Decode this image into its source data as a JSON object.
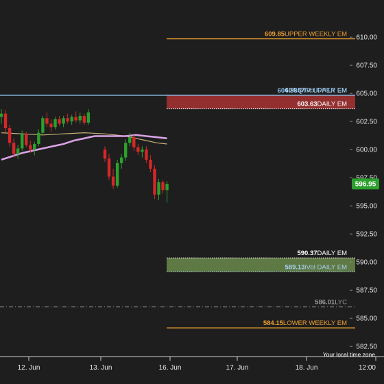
{
  "chart_data": {
    "type": "candlestick",
    "y_ticks": [
      "610.00",
      "607.50",
      "605.00",
      "602.50",
      "600.00",
      "597.50",
      "595.00",
      "592.50",
      "590.00",
      "587.50",
      "585.00",
      "582.50"
    ],
    "x_ticks": [
      "12. Jun",
      "13. Jun",
      "16. Jun",
      "17. Jun",
      "18. Jun",
      "12:00"
    ],
    "ylim": [
      581.6,
      613.3
    ],
    "current_price": {
      "value": 596.95,
      "label": "596.95",
      "color": "#2ca02c"
    },
    "footer_note": "Your local time zone",
    "levels": [
      {
        "key": "upper_weekly",
        "value": 609.85,
        "value_label": "609.85",
        "name": "UPPER WEEKLY EM",
        "color": "#f0a030",
        "style": "solid",
        "x_start_frac": 0.46
      },
      {
        "key": "qtr_upper",
        "value": 604.83,
        "value_label": "604.83",
        "name": "QTR UPPER EM",
        "color": "#8ec7f0",
        "style": "solid",
        "x_start_frac": 0.0
      },
      {
        "key": "ivol_upper",
        "value": 604.87,
        "value_label": "604.87",
        "name": "iVol DAILY EM",
        "color": "#a8d0f0",
        "style": "none",
        "x_start_frac": 0.46
      },
      {
        "key": "daily_upper",
        "value": 603.63,
        "value_label": "603.63",
        "name": "DAILY EM",
        "color": "#ffffff",
        "style": "dotted",
        "x_start_frac": 0.46
      },
      {
        "key": "daily_lower",
        "value": 590.37,
        "value_label": "590.37",
        "name": "DAILY EM",
        "color": "#ffffff",
        "style": "dotted",
        "x_start_frac": 0.46
      },
      {
        "key": "ivol_lower",
        "value": 589.13,
        "value_label": "589.13",
        "name": "iVol DAILY EM",
        "color": "#a8d0f0",
        "style": "dotted",
        "x_start_frac": 0.46
      },
      {
        "key": "lyc",
        "value": 586.01,
        "value_label": "586.01",
        "name": "LYC",
        "color": "#9a9a9a",
        "style": "dashdot",
        "x_start_frac": 0.0
      },
      {
        "key": "lower_weekly",
        "value": 584.15,
        "value_label": "584.15",
        "name": "LOWER WEEKLY EM",
        "color": "#f0a030",
        "style": "solid",
        "x_start_frac": 0.46
      }
    ],
    "zones": [
      {
        "key": "upper_zone",
        "from": 603.63,
        "to": 604.87,
        "color": "#a83232"
      },
      {
        "key": "lower_zone",
        "from": 589.13,
        "to": 590.37,
        "color": "#6a8a4a"
      }
    ],
    "candles": [
      [
        0.0,
        602.9,
        603.6,
        602.3,
        603.2
      ],
      [
        0.8,
        603.2,
        603.5,
        601.5,
        601.9
      ],
      [
        1.6,
        601.9,
        602.2,
        600.3,
        600.6
      ],
      [
        2.4,
        600.6,
        601.0,
        599.3,
        599.6
      ],
      [
        3.2,
        599.6,
        600.4,
        599.2,
        600.1
      ],
      [
        4.0,
        600.1,
        601.7,
        599.9,
        601.4
      ],
      [
        4.8,
        601.4,
        601.6,
        600.2,
        600.4
      ],
      [
        5.6,
        600.4,
        600.8,
        599.7,
        600.0
      ],
      [
        6.4,
        600.0,
        600.7,
        599.5,
        600.5
      ],
      [
        7.2,
        600.5,
        601.8,
        600.3,
        601.5
      ],
      [
        8.0,
        601.5,
        603.0,
        601.3,
        602.8
      ],
      [
        8.8,
        602.8,
        603.3,
        602.0,
        602.3
      ],
      [
        9.6,
        602.3,
        602.7,
        601.6,
        602.0
      ],
      [
        10.4,
        602.0,
        602.9,
        601.8,
        602.7
      ],
      [
        11.2,
        602.7,
        603.0,
        602.1,
        602.3
      ],
      [
        12.0,
        602.3,
        603.0,
        602.0,
        602.8
      ],
      [
        12.8,
        602.8,
        603.2,
        602.3,
        602.5
      ],
      [
        13.6,
        602.5,
        603.1,
        602.2,
        602.9
      ],
      [
        14.4,
        602.9,
        603.4,
        602.4,
        602.6
      ],
      [
        15.2,
        602.6,
        603.3,
        602.3,
        603.0
      ],
      [
        16.0,
        603.0,
        603.2,
        602.2,
        602.4
      ],
      [
        16.8,
        602.4,
        603.6,
        602.2,
        603.3
      ],
      [
        20.0,
        600.0,
        600.3,
        598.9,
        599.2
      ],
      [
        20.8,
        599.2,
        599.6,
        597.3,
        597.6
      ],
      [
        21.6,
        597.6,
        598.3,
        596.5,
        596.8
      ],
      [
        22.4,
        596.8,
        599.1,
        596.6,
        598.8
      ],
      [
        23.2,
        598.8,
        599.6,
        598.3,
        599.3
      ],
      [
        24.0,
        599.3,
        600.9,
        599.0,
        600.6
      ],
      [
        24.8,
        600.6,
        601.5,
        600.3,
        601.1
      ],
      [
        25.6,
        601.1,
        601.3,
        599.9,
        600.2
      ],
      [
        26.4,
        600.2,
        600.5,
        599.5,
        599.8
      ],
      [
        27.2,
        599.8,
        600.3,
        599.3,
        600.0
      ],
      [
        28.0,
        600.0,
        600.3,
        598.8,
        599.1
      ],
      [
        28.8,
        599.1,
        599.5,
        598.0,
        598.3
      ],
      [
        29.6,
        598.3,
        598.6,
        595.6,
        596.0
      ],
      [
        30.4,
        596.0,
        597.4,
        595.5,
        597.1
      ],
      [
        31.2,
        597.1,
        597.3,
        596.1,
        596.4
      ],
      [
        32.0,
        596.4,
        597.2,
        595.3,
        596.95
      ]
    ],
    "ma_purple": [
      [
        0.0,
        599.1
      ],
      [
        2.0,
        599.4
      ],
      [
        4.0,
        599.7
      ],
      [
        6.0,
        599.9
      ],
      [
        8.0,
        600.1
      ],
      [
        10.0,
        600.3
      ],
      [
        12.0,
        600.5
      ],
      [
        14.0,
        600.8
      ],
      [
        16.0,
        601.0
      ],
      [
        18.0,
        601.2
      ],
      [
        20.0,
        601.2
      ],
      [
        22.0,
        601.2
      ],
      [
        24.0,
        601.2
      ],
      [
        26.0,
        601.3
      ],
      [
        28.0,
        601.2
      ],
      [
        30.0,
        601.1
      ],
      [
        32.0,
        601.0
      ]
    ],
    "ma_tan": [
      [
        0.0,
        601.5
      ],
      [
        4.0,
        601.4
      ],
      [
        8.0,
        601.3
      ],
      [
        12.0,
        601.4
      ],
      [
        16.0,
        601.5
      ],
      [
        20.0,
        601.4
      ],
      [
        24.0,
        601.2
      ],
      [
        26.0,
        601.0
      ],
      [
        28.0,
        600.8
      ],
      [
        30.0,
        600.6
      ],
      [
        32.0,
        600.5
      ]
    ]
  }
}
